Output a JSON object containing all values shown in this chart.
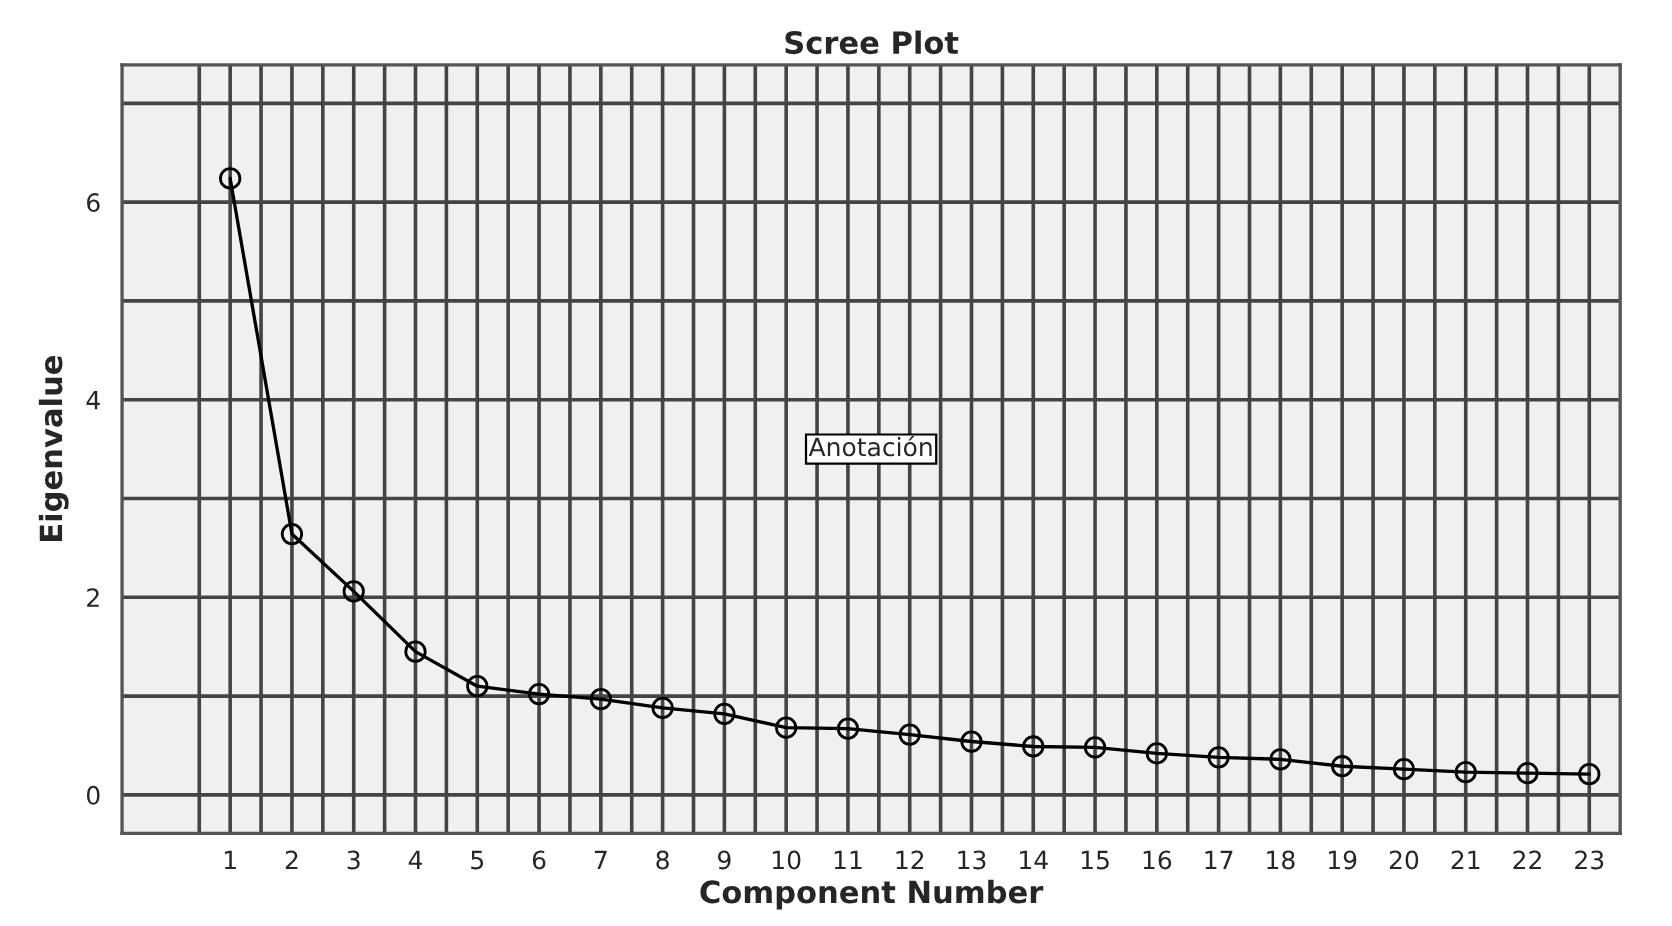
{
  "chart_data": {
    "type": "line",
    "title": "Scree Plot",
    "xlabel": "Component Number",
    "ylabel": "Eigenvalue",
    "annotations": [
      "Anotación"
    ],
    "x": [
      1,
      2,
      3,
      4,
      5,
      6,
      7,
      8,
      9,
      10,
      11,
      12,
      13,
      14,
      15,
      16,
      17,
      18,
      19,
      20,
      21,
      22,
      23
    ],
    "series": [
      {
        "color": "#000000",
        "values": [
          6.24,
          2.64,
          2.06,
          1.45,
          1.1,
          1.02,
          0.97,
          0.88,
          0.82,
          0.68,
          0.67,
          0.61,
          0.54,
          0.49,
          0.48,
          0.42,
          0.38,
          0.36,
          0.29,
          0.26,
          0.23,
          0.22,
          0.21
        ]
      }
    ],
    "xlim": [
      -0.75,
      23.5
    ],
    "xticks": [
      {
        "value": 0.5,
        "label": null
      },
      1,
      {
        "value": 1.5,
        "label": null
      },
      2,
      {
        "value": 2.5,
        "label": null
      },
      3,
      {
        "value": 3.5,
        "label": null
      },
      4,
      {
        "value": 4.5,
        "label": null
      },
      5,
      {
        "value": 5.5,
        "label": null
      },
      6,
      {
        "value": 6.5,
        "label": null
      },
      7,
      {
        "value": 7.5,
        "label": null
      },
      8,
      {
        "value": 8.5,
        "label": null
      },
      9,
      {
        "value": 9.5,
        "label": null
      },
      10,
      {
        "value": 10.5,
        "label": null
      },
      11,
      {
        "value": 11.5,
        "label": null
      },
      12,
      {
        "value": 12.5,
        "label": null
      },
      13,
      {
        "value": 13.5,
        "label": null
      },
      14,
      {
        "value": 14.5,
        "label": null
      },
      15,
      {
        "value": 15.5,
        "label": null
      },
      16,
      {
        "value": 16.5,
        "label": null
      },
      17,
      {
        "value": 17.5,
        "label": null
      },
      18,
      {
        "value": 18.5,
        "label": null
      },
      19,
      {
        "value": 19.5,
        "label": null
      },
      20,
      {
        "value": 20.5,
        "label": null
      },
      21,
      {
        "value": 21.5,
        "label": null
      },
      22,
      {
        "value": 22.5,
        "label": null
      },
      23
    ],
    "ylim": [
      -0.39,
      7.39
    ],
    "yticks": [
      0,
      {
        "value": 1,
        "label": null
      },
      2,
      {
        "value": 3,
        "label": null
      },
      4,
      {
        "value": 5,
        "label": null
      },
      6,
      {
        "value": 7,
        "label": null
      }
    ],
    "grid": true,
    "marker": "circle",
    "line_style": "solid",
    "legend": false
  }
}
